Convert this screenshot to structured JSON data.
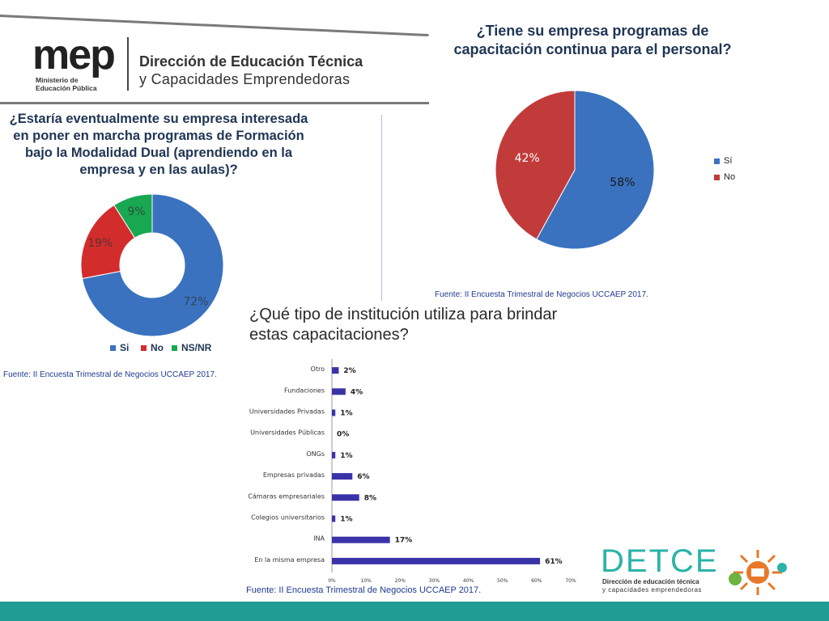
{
  "header": {
    "mep_logo": "mep",
    "mep_ministry": "Ministerio de",
    "mep_ministry2": "Educación Pública",
    "title": "Dirección de Educación Técnica",
    "subtitle": "y Capacidades Emprendedoras"
  },
  "colors": {
    "blue": "#3a72c0",
    "red": "#d32c2c",
    "green": "#18a852",
    "darkred": "#c23b3b",
    "bar": "#3a33a8",
    "teal": "#1f9c93"
  },
  "donut": {
    "question": "¿Estaría eventualmente su empresa interesada en poner en marcha programas de Formación bajo la Modalidad Dual (aprendiendo en la empresa y en las aulas)?",
    "source": "Fuente: II Encuesta Trimestral de Negocios UCCAEP 2017.",
    "chart_data": {
      "type": "pie",
      "labels": [
        "Si",
        "No",
        "NS/NR"
      ],
      "values": [
        72,
        19,
        9
      ],
      "value_labels": [
        "72%",
        "19%",
        "9%"
      ],
      "legend_position": "bottom"
    }
  },
  "pie": {
    "question": "¿Tiene su empresa programas de capacitación continua para el personal?",
    "source": "Fuente: II Encuesta Trimestral de Negocios UCCAEP 2017.",
    "chart_data": {
      "type": "pie",
      "labels": [
        "Sí",
        "No"
      ],
      "values": [
        58,
        42
      ],
      "value_labels": [
        "58%",
        "42%"
      ],
      "legend_position": "right"
    }
  },
  "bars": {
    "question": "¿Qué tipo de institución utiliza para brindar estas capacitaciones?",
    "source": "Fuente: II Encuesta Trimestral de Negocios UCCAEP 2017.",
    "chart_data": {
      "type": "bar",
      "orientation": "horizontal",
      "categories": [
        "Otro",
        "Fundaciones",
        "Universidades Privadas",
        "Universidades Públicas",
        "ONGs",
        "Empresas privadas",
        "Cámaras empresariales",
        "Colegios universitarios",
        "INA",
        "En la misma empresa"
      ],
      "values": [
        2,
        4,
        1,
        0,
        1,
        6,
        8,
        1,
        17,
        61
      ],
      "value_labels": [
        "2%",
        "4%",
        "1%",
        "0%",
        "1%",
        "6%",
        "8%",
        "1%",
        "17%",
        "61%"
      ],
      "xlim": [
        0,
        70
      ],
      "xticks": [
        "0%",
        "10%",
        "20%",
        "30%",
        "40%",
        "50%",
        "60%",
        "70%"
      ]
    }
  },
  "footer": {
    "detce": "DETCE",
    "detce_sub1": "Dirección de educación técnica",
    "detce_sub2": "y capacidades emprendedoras"
  }
}
